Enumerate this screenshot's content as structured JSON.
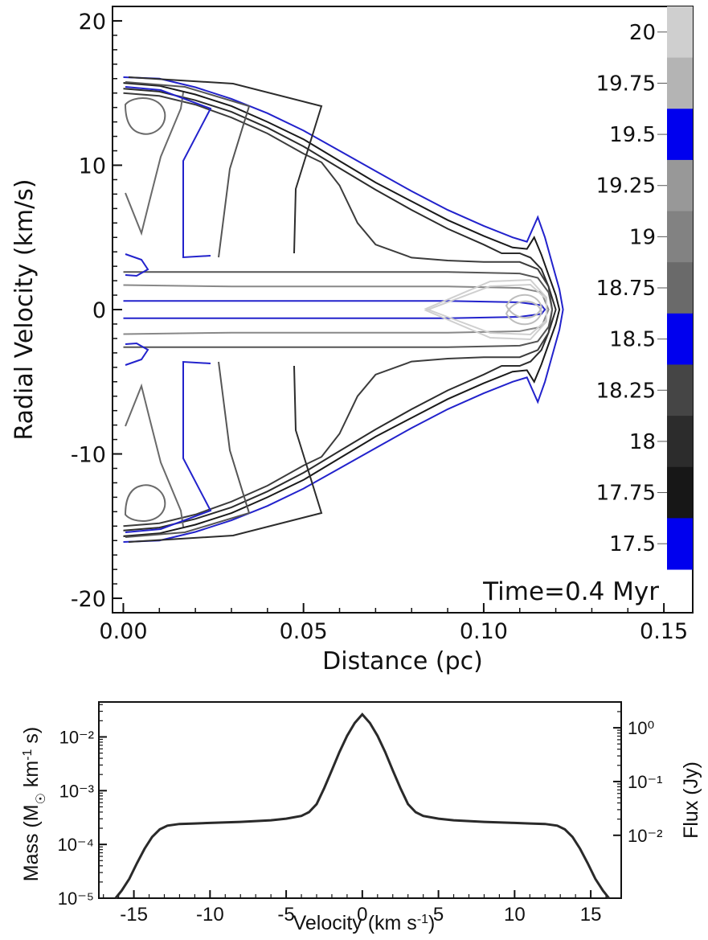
{
  "chart_data": [
    {
      "type": "contour",
      "xlabel": "Distance (pc)",
      "ylabel": "Radial Velocity (km/s)",
      "xlim": [
        -0.003,
        0.158
      ],
      "ylim": [
        -21,
        21
      ],
      "xticks": [
        "0.00",
        "0.05",
        "0.10",
        "0.15"
      ],
      "yticks": [
        "20",
        "10",
        "0",
        "-10",
        "-20"
      ],
      "annotation": "Time=0.4 Myr",
      "colorbar": {
        "labels": [
          "20",
          "19.75",
          "19.5",
          "19.25",
          "19",
          "18.75",
          "18.5",
          "18.25",
          "18",
          "17.75",
          "17.5"
        ],
        "colors": [
          "#cfcfcf",
          "#b4b4b4",
          "#0000ee",
          "#989898",
          "#828282",
          "#6a6a6a",
          "#0000ee",
          "#454545",
          "#2c2c2c",
          "#171717",
          "#0000ee"
        ]
      },
      "contour_half_widths": [
        {
          "level": "17.5",
          "color": "#2222cc",
          "points": [
            [
              0.0,
              16.1
            ],
            [
              0.01,
              16.0
            ],
            [
              0.02,
              15.4
            ],
            [
              0.03,
              14.6
            ],
            [
              0.04,
              13.6
            ],
            [
              0.05,
              12.4
            ],
            [
              0.06,
              11.0
            ],
            [
              0.07,
              9.6
            ],
            [
              0.08,
              8.2
            ],
            [
              0.09,
              6.9
            ],
            [
              0.1,
              5.8
            ],
            [
              0.108,
              5.0
            ],
            [
              0.112,
              4.7
            ],
            [
              0.115,
              6.4
            ],
            [
              0.117,
              5.0
            ],
            [
              0.119,
              3.2
            ],
            [
              0.121,
              1.4
            ],
            [
              0.122,
              0.0
            ]
          ]
        },
        {
          "level": "17.75",
          "color": "#1a1a1a",
          "points": [
            [
              0.0,
              15.7
            ],
            [
              0.01,
              15.5
            ],
            [
              0.02,
              14.9
            ],
            [
              0.03,
              14.1
            ],
            [
              0.04,
              13.0
            ],
            [
              0.05,
              11.8
            ],
            [
              0.06,
              10.3
            ],
            [
              0.07,
              8.8
            ],
            [
              0.08,
              7.5
            ],
            [
              0.09,
              6.2
            ],
            [
              0.1,
              5.1
            ],
            [
              0.108,
              4.3
            ],
            [
              0.112,
              4.2
            ],
            [
              0.114,
              5.0
            ],
            [
              0.116,
              3.8
            ],
            [
              0.118,
              2.4
            ],
            [
              0.12,
              1.0
            ],
            [
              0.121,
              0.0
            ]
          ]
        },
        {
          "level": "18",
          "color": "#2c2c2c",
          "points": [
            [
              0.0,
              15.3
            ],
            [
              0.01,
              15.1
            ],
            [
              0.02,
              14.5
            ],
            [
              0.03,
              13.7
            ],
            [
              0.04,
              12.6
            ],
            [
              0.05,
              11.3
            ],
            [
              0.06,
              9.8
            ],
            [
              0.07,
              8.3
            ],
            [
              0.08,
              6.9
            ],
            [
              0.09,
              5.6
            ],
            [
              0.1,
              4.5
            ],
            [
              0.105,
              3.9
            ],
            [
              0.11,
              3.9
            ],
            [
              0.113,
              3.6
            ],
            [
              0.116,
              2.8
            ],
            [
              0.118,
              1.6
            ],
            [
              0.12,
              0.0
            ]
          ]
        },
        {
          "level": "18.25",
          "color": "#3c3c3c",
          "points": [
            [
              0.0,
              15.0
            ],
            [
              0.01,
              14.8
            ],
            [
              0.02,
              14.2
            ],
            [
              0.03,
              13.3
            ],
            [
              0.04,
              12.2
            ],
            [
              0.05,
              10.8
            ],
            [
              0.055,
              10.2
            ],
            [
              0.06,
              8.6
            ],
            [
              0.065,
              6.0
            ],
            [
              0.07,
              4.5
            ],
            [
              0.08,
              3.6
            ],
            [
              0.09,
              3.4
            ],
            [
              0.1,
              3.3
            ],
            [
              0.11,
              3.3
            ],
            [
              0.115,
              2.8
            ],
            [
              0.118,
              1.6
            ],
            [
              0.119,
              0.0
            ]
          ]
        },
        {
          "level": "18.75",
          "color": "#555555",
          "points": [
            [
              0.0,
              2.6
            ],
            [
              0.03,
              2.6
            ],
            [
              0.06,
              2.6
            ],
            [
              0.09,
              2.6
            ],
            [
              0.11,
              2.5
            ],
            [
              0.115,
              2.2
            ],
            [
              0.118,
              1.2
            ],
            [
              0.119,
              0.0
            ]
          ]
        },
        {
          "level": "19.25",
          "color": "#888888",
          "points": [
            [
              0.0,
              1.7
            ],
            [
              0.03,
              1.6
            ],
            [
              0.06,
              1.6
            ],
            [
              0.09,
              1.6
            ],
            [
              0.11,
              1.5
            ],
            [
              0.116,
              1.2
            ],
            [
              0.118,
              0.0
            ]
          ]
        },
        {
          "level": "19.5",
          "color": "#2222cc",
          "points": [
            [
              0.0,
              0.6
            ],
            [
              0.03,
              0.6
            ],
            [
              0.06,
              0.6
            ],
            [
              0.09,
              0.6
            ],
            [
              0.11,
              0.5
            ],
            [
              0.116,
              0.3
            ],
            [
              0.117,
              0.0
            ]
          ]
        }
      ]
    },
    {
      "type": "line",
      "xlabel": "Velocity (km s⁻¹)",
      "ylabel": "Mass (M☉ km⁻¹ s)",
      "ylabel2": "Flux (Jy)",
      "xlim": [
        -17.3,
        17.0
      ],
      "ylim_log10": [
        -5.0,
        -1.35
      ],
      "xticks": [
        "-15",
        "-10",
        "-5",
        "0",
        "5",
        "10",
        "15"
      ],
      "yticks": [
        "10⁻²",
        "10⁻³",
        "10⁻⁴",
        "10⁻⁵"
      ],
      "yticks2": [
        "10⁰",
        "10⁻¹",
        "10⁻²"
      ],
      "series": [
        {
          "x": [
            -16.2,
            -15.8,
            -15.3,
            -14.8,
            -14.3,
            -13.8,
            -13.3,
            -12.8,
            -12,
            -11,
            -10,
            -8,
            -6,
            -5,
            -4,
            -3.5,
            -3,
            -2.5,
            -2,
            -1.5,
            -1,
            -0.5,
            0,
            0.5,
            1,
            1.5,
            2,
            2.5,
            3,
            3.5,
            4,
            5,
            6,
            8,
            10,
            11,
            12,
            12.8,
            13.3,
            13.8,
            14.3,
            14.8,
            15.3,
            15.8,
            16.2
          ],
          "log10_y": [
            -5.0,
            -4.86,
            -4.64,
            -4.35,
            -4.08,
            -3.86,
            -3.72,
            -3.65,
            -3.62,
            -3.61,
            -3.6,
            -3.58,
            -3.55,
            -3.52,
            -3.47,
            -3.4,
            -3.25,
            -2.95,
            -2.62,
            -2.28,
            -1.98,
            -1.74,
            -1.58,
            -1.74,
            -1.98,
            -2.28,
            -2.62,
            -2.95,
            -3.25,
            -3.4,
            -3.47,
            -3.52,
            -3.55,
            -3.58,
            -3.6,
            -3.61,
            -3.62,
            -3.65,
            -3.72,
            -3.86,
            -4.08,
            -4.35,
            -4.64,
            -4.86,
            -5.0
          ]
        }
      ]
    }
  ]
}
